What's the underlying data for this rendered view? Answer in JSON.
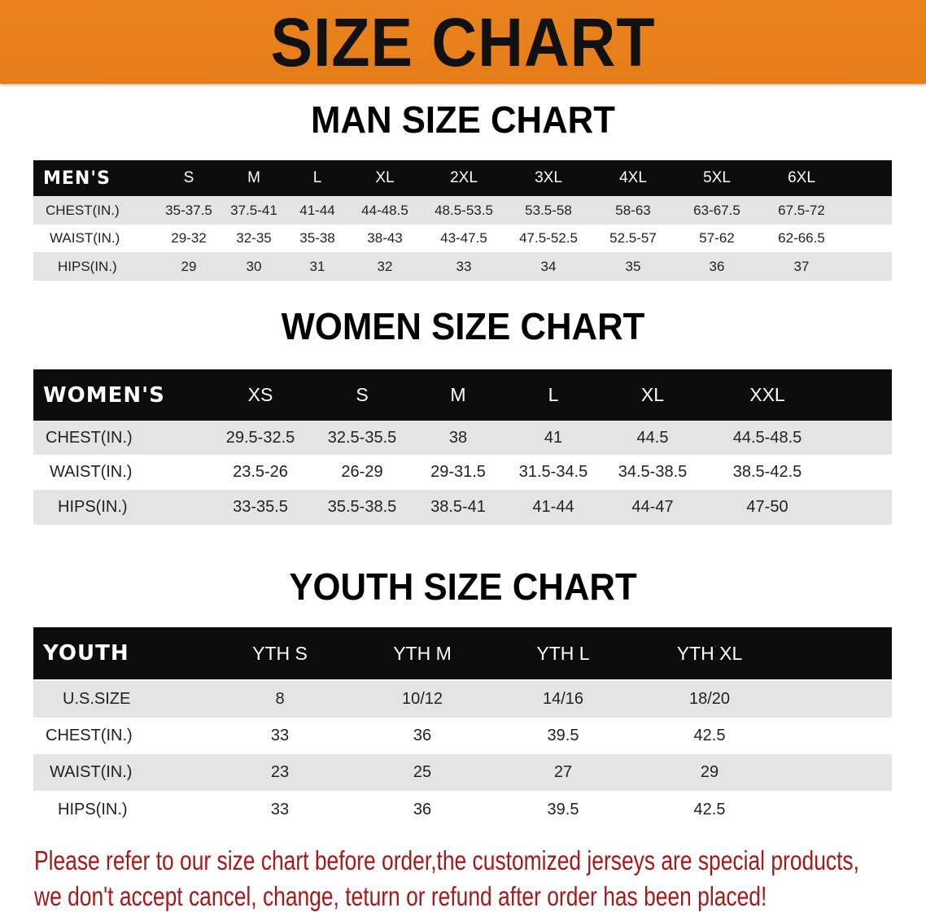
{
  "title": "SIZE CHART",
  "colors": {
    "banner": "#e8801e",
    "header_row": "#0c0c0c",
    "stripe": "#e4e4e4",
    "notice": "#a31a1a"
  },
  "men": {
    "title": "MAN SIZE CHART",
    "header_label": "MEN'S",
    "sizes": [
      "S",
      "M",
      "L",
      "XL",
      "2XL",
      "3XL",
      "4XL",
      "5XL",
      "6XL"
    ],
    "rows": [
      {
        "label": "CHEST(IN.)",
        "values": [
          "35-37.5",
          "37.5-41",
          "41-44",
          "44-48.5",
          "48.5-53.5",
          "53.5-58",
          "58-63",
          "63-67.5",
          "67.5-72"
        ]
      },
      {
        "label": "WAIST(IN.)",
        "values": [
          "29-32",
          "32-35",
          "35-38",
          "38-43",
          "43-47.5",
          "47.5-52.5",
          "52.5-57",
          "57-62",
          "62-66.5"
        ]
      },
      {
        "label": "HIPS(IN.)",
        "values": [
          "29",
          "30",
          "31",
          "32",
          "33",
          "34",
          "35",
          "36",
          "37"
        ]
      }
    ]
  },
  "women": {
    "title": "WOMEN SIZE CHART",
    "header_label": "WOMEN'S",
    "sizes": [
      "XS",
      "S",
      "M",
      "L",
      "XL",
      "XXL"
    ],
    "rows": [
      {
        "label": "CHEST(IN.)",
        "values": [
          "29.5-32.5",
          "32.5-35.5",
          "38",
          "41",
          "44.5",
          "44.5-48.5"
        ]
      },
      {
        "label": "WAIST(IN.)",
        "values": [
          "23.5-26",
          "26-29",
          "29-31.5",
          "31.5-34.5",
          "34.5-38.5",
          "38.5-42.5"
        ]
      },
      {
        "label": "HIPS(IN.)",
        "values": [
          "33-35.5",
          "35.5-38.5",
          "38.5-41",
          "41-44",
          "44-47",
          "47-50"
        ]
      }
    ]
  },
  "youth": {
    "title": "YOUTH SIZE CHART",
    "header_label": "YOUTH",
    "sizes": [
      "YTH S",
      "YTH M",
      "YTH L",
      "YTH XL"
    ],
    "rows": [
      {
        "label": "U.S.SIZE",
        "values": [
          "8",
          "10/12",
          "14/16",
          "18/20"
        ]
      },
      {
        "label": "CHEST(IN.)",
        "values": [
          "33",
          "36",
          "39.5",
          "42.5"
        ]
      },
      {
        "label": "WAIST(IN.)",
        "values": [
          "23",
          "25",
          "27",
          "29"
        ]
      },
      {
        "label": "HIPS(IN.)",
        "values": [
          "33",
          "36",
          "39.5",
          "42.5"
        ]
      }
    ]
  },
  "notice": {
    "line1": "Please refer to our size chart before order,the customized jerseys are special products,",
    "line2": "we don't accept cancel, change, teturn or refund after order has been placed!"
  }
}
